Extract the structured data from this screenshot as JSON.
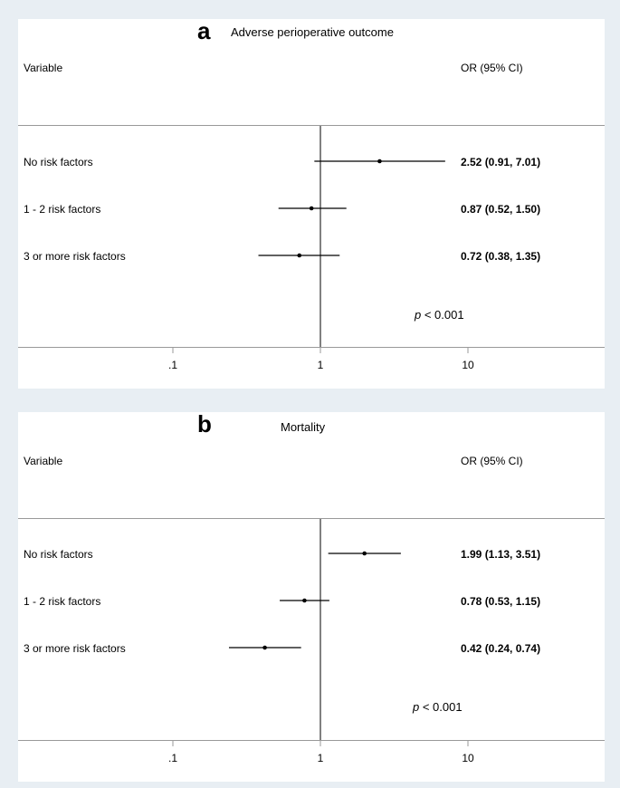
{
  "chart_data": [
    {
      "type": "forest",
      "panel_letter": "a",
      "title": "Adverse perioperative outcome",
      "header_variable": "Variable",
      "header_or": "OR (95% CI)",
      "x_scale": "log",
      "reference_line": 1,
      "xticks": [
        0.1,
        1,
        10
      ],
      "xtick_labels": [
        ".1",
        "1",
        "10"
      ],
      "rows": [
        {
          "label": "No risk factors",
          "or": 2.52,
          "lo": 0.91,
          "hi": 7.01,
          "text": "2.52 (0.91, 7.01)"
        },
        {
          "label": "1 - 2 risk factors",
          "or": 0.87,
          "lo": 0.52,
          "hi": 1.5,
          "text": "0.87 (0.52, 1.50)"
        },
        {
          "label": "3 or more risk factors",
          "or": 0.72,
          "lo": 0.38,
          "hi": 1.35,
          "text": "0.72 (0.38, 1.35)"
        }
      ],
      "p_symbol": "p",
      "p_text": " < 0.001"
    },
    {
      "type": "forest",
      "panel_letter": "b",
      "title": "Mortality",
      "header_variable": "Variable",
      "header_or": "OR (95% CI)",
      "x_scale": "log",
      "reference_line": 1,
      "xticks": [
        0.1,
        1,
        10
      ],
      "xtick_labels": [
        ".1",
        "1",
        "10"
      ],
      "rows": [
        {
          "label": "No risk factors",
          "or": 1.99,
          "lo": 1.13,
          "hi": 3.51,
          "text": "1.99 (1.13, 3.51)"
        },
        {
          "label": "1 - 2 risk factors",
          "or": 0.78,
          "lo": 0.53,
          "hi": 1.15,
          "text": "0.78 (0.53, 1.15)"
        },
        {
          "label": "3 or more risk factors",
          "or": 0.42,
          "lo": 0.24,
          "hi": 0.74,
          "text": "0.42 (0.24, 0.74)"
        }
      ],
      "p_symbol": "p",
      "p_text": " < 0.001"
    }
  ]
}
